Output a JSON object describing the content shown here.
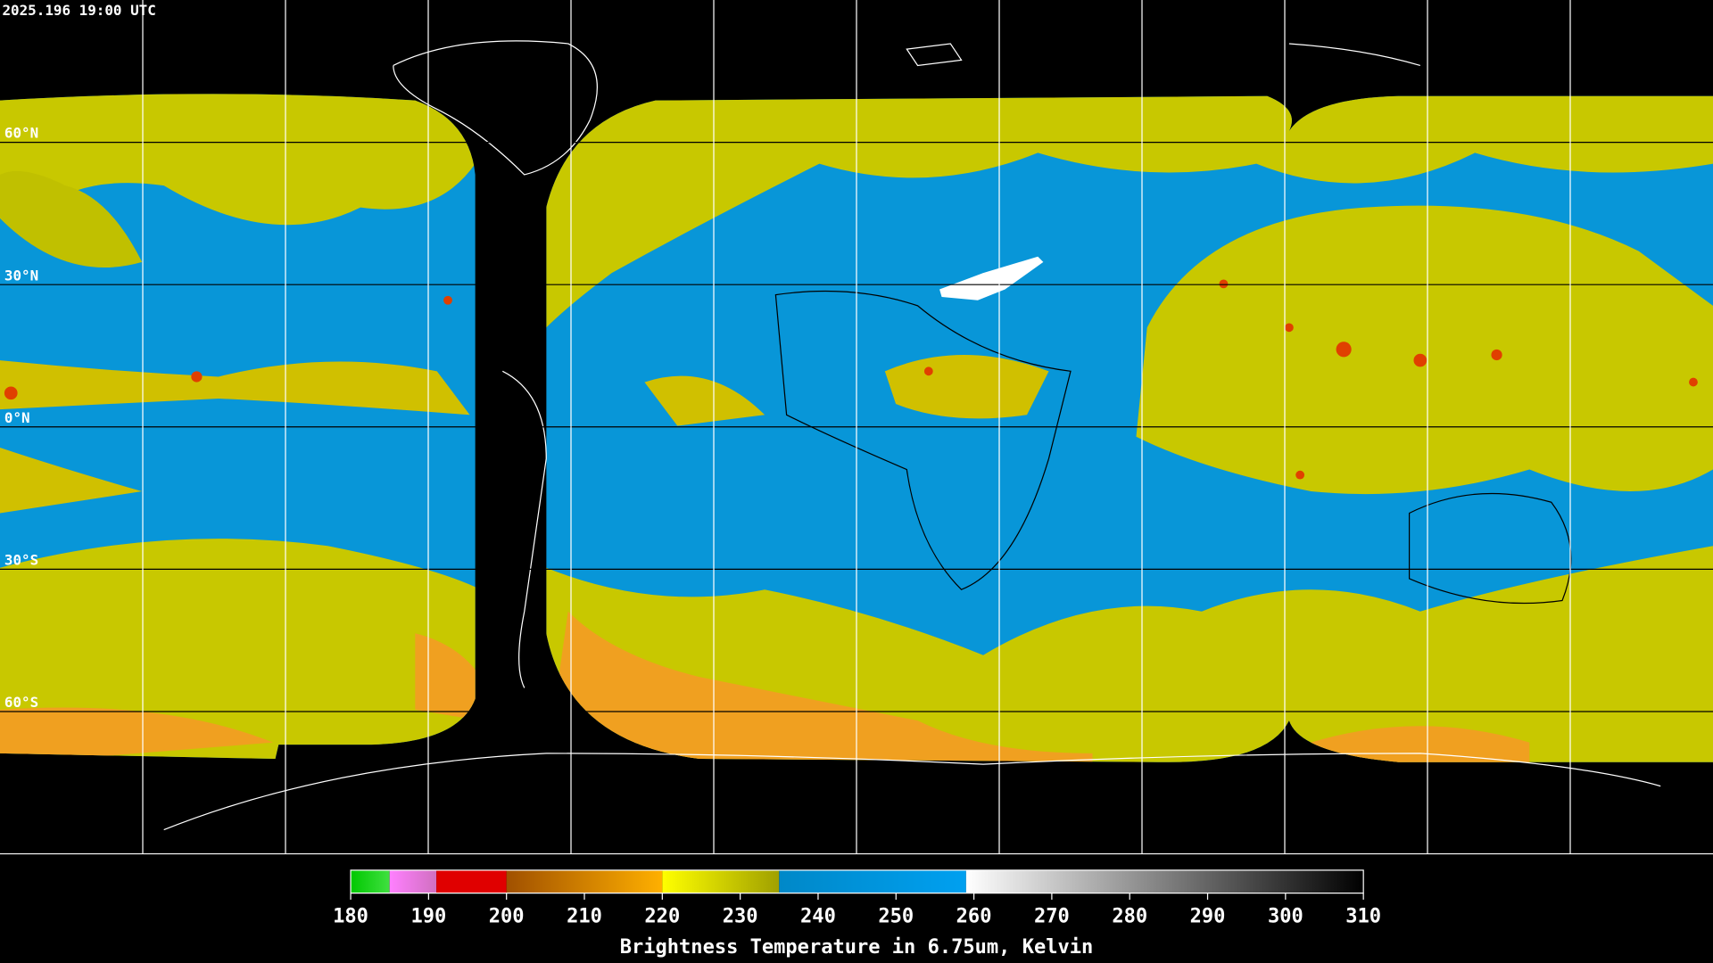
{
  "header": {
    "timestamp": "2025.196 19:00 UTC"
  },
  "map": {
    "lat_ticks": [
      {
        "value": 60,
        "label": "60°N"
      },
      {
        "value": 30,
        "label": "30°N"
      },
      {
        "value": 0,
        "label": "0°N"
      },
      {
        "value": -30,
        "label": "30°S"
      },
      {
        "value": -60,
        "label": "60°S"
      }
    ],
    "lon_ticks": [
      -150,
      -120,
      -90,
      -60,
      -30,
      0,
      30,
      60,
      90,
      120,
      150
    ]
  },
  "colorbar": {
    "title": "Brightness Temperature in 6.75um, Kelvin",
    "lim": [
      180,
      310
    ],
    "ticks": [
      180,
      190,
      200,
      210,
      220,
      230,
      240,
      250,
      260,
      270,
      280,
      290,
      300,
      310
    ],
    "segments": [
      {
        "from": 180,
        "to": 185,
        "colors": [
          "#00c800",
          "#40e040"
        ]
      },
      {
        "from": 185,
        "to": 191,
        "colors": [
          "#ff80ff",
          "#d070c0"
        ]
      },
      {
        "from": 191,
        "to": 200,
        "colors": [
          "#e00000",
          "#e00000"
        ]
      },
      {
        "from": 200,
        "to": 220,
        "colors": [
          "#a05000",
          "#ffb000"
        ]
      },
      {
        "from": 220,
        "to": 235,
        "colors": [
          "#ffff00",
          "#a0a000"
        ]
      },
      {
        "from": 235,
        "to": 259,
        "colors": [
          "#0088c8",
          "#00a0f0"
        ]
      },
      {
        "from": 259,
        "to": 310,
        "colors": [
          "#ffffff",
          "#000000"
        ]
      }
    ]
  }
}
